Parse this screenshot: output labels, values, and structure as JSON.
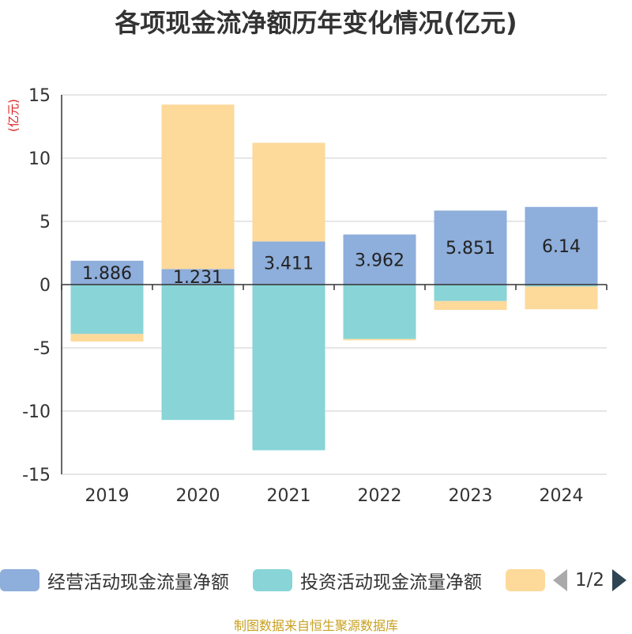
{
  "title": "各项现金流净额历年变化情况(亿元)",
  "source": "制图数据来自恒生聚源数据库",
  "colors": {
    "operating": "#8eaedb",
    "investing": "#88d4d7",
    "financing": "#fdd99a",
    "grid": "#cccccc",
    "axis": "#333333",
    "unit": "#dd2222"
  },
  "legend": {
    "items": [
      {
        "label": "经营活动现金流量净额",
        "color": "#8eaedb"
      },
      {
        "label": "投资活动现金流量净额",
        "color": "#88d4d7"
      },
      {
        "label": "",
        "color": "#fdd99a"
      }
    ],
    "page": "1/2"
  },
  "chart_data": {
    "type": "bar",
    "stacked": true,
    "categories": [
      "2019",
      "2020",
      "2021",
      "2022",
      "2023",
      "2024"
    ],
    "series": [
      {
        "name": "经营活动现金流量净额",
        "values": [
          1.886,
          1.231,
          3.411,
          3.962,
          5.851,
          6.14
        ]
      },
      {
        "name": "投资活动现金流量净额",
        "values": [
          -3.9,
          -10.7,
          -13.1,
          -4.3,
          -1.3,
          -0.15
        ]
      },
      {
        "name": "",
        "values": [
          -0.6,
          13.0,
          7.8,
          -0.1,
          -0.7,
          -1.8
        ]
      }
    ],
    "data_labels": [
      "1.886",
      "1.231",
      "3.411",
      "3.962",
      "5.851",
      "6.14"
    ],
    "ylabel": "(亿元)",
    "ylim": [
      -15,
      15
    ],
    "yticks": [
      15,
      10,
      5,
      0,
      -5,
      -10,
      -15
    ],
    "grid": true
  }
}
